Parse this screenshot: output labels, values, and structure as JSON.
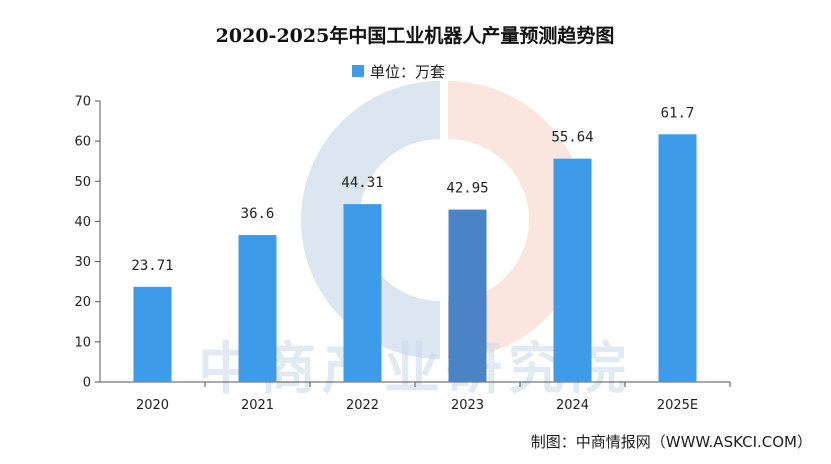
{
  "chart_data": {
    "type": "bar",
    "title": "2020-2025年中国工业机器人产量预测趋势图",
    "legend": "单位：万套",
    "legend_placement": "top-center",
    "categories": [
      "2020",
      "2021",
      "2022",
      "2023",
      "2024",
      "2025E"
    ],
    "series": [
      {
        "name": "单位：万套",
        "values": [
          23.71,
          36.6,
          44.31,
          42.95,
          55.64,
          61.7
        ]
      }
    ],
    "value_labels": [
      "23.71",
      "36.6",
      "44.31",
      "42.95",
      "55.64",
      "61.7"
    ],
    "ylim": [
      0,
      70
    ],
    "yticks": [
      0,
      10,
      20,
      30,
      40,
      50,
      60,
      70
    ],
    "grid": false,
    "bar_color": "#3d9be9",
    "highlight_bar_color": "#4a83c6"
  },
  "source": "制图：中商情报网（WWW.ASKCI.COM）",
  "watermark": "中商产业研究院"
}
